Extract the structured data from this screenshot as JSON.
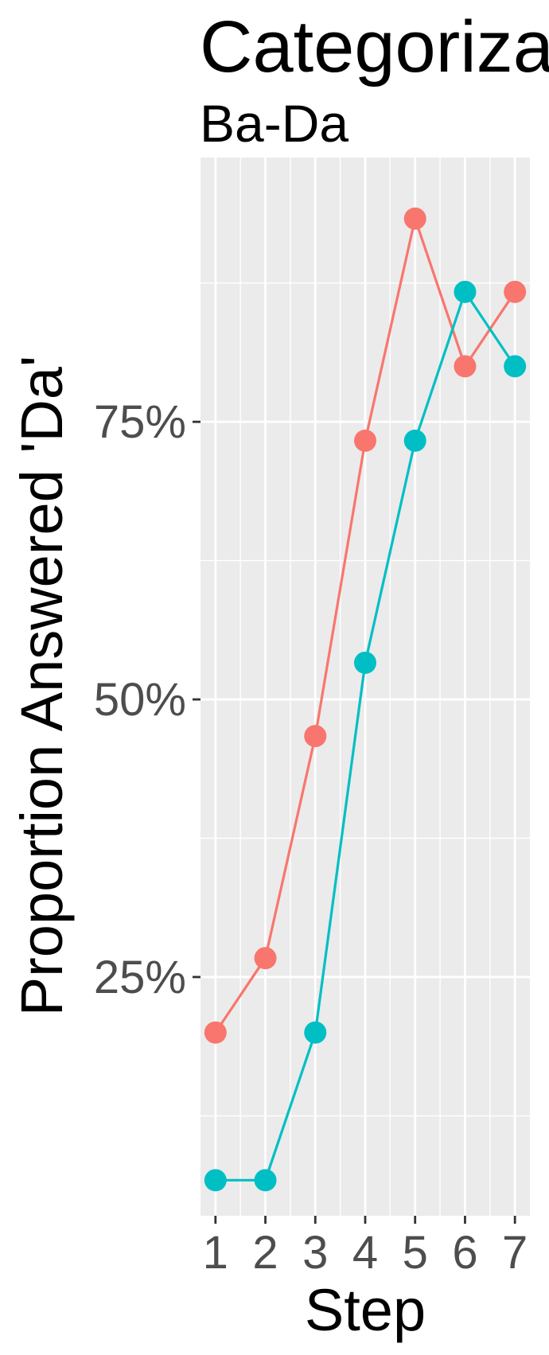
{
  "chart_data": {
    "type": "line",
    "title": "Categorizat",
    "subtitle": "Ba-Da",
    "xlabel": "Step",
    "ylabel": "Proportion Answered 'Da'",
    "x": [
      1,
      2,
      3,
      4,
      5,
      6,
      7
    ],
    "x_tick_labels": [
      "1",
      "2",
      "3",
      "4",
      "5",
      "6",
      "7"
    ],
    "xlim": [
      0.7,
      7.3
    ],
    "ylim": [
      0.035,
      0.988
    ],
    "y_ticks": [
      0.25,
      0.5,
      0.75
    ],
    "y_tick_labels": [
      "25%",
      "50%",
      "75%"
    ],
    "grid": true,
    "legend": "none",
    "series": [
      {
        "color": "#F8766D",
        "values": [
          0.2,
          0.267,
          0.467,
          0.733,
          0.933,
          0.8,
          0.867
        ]
      },
      {
        "color": "#00BFC4",
        "values": [
          0.067,
          0.067,
          0.2,
          0.533,
          0.733,
          0.867,
          0.8
        ]
      }
    ],
    "panel_background": "#EBEBEB",
    "grid_color": "#FFFFFF",
    "tick_color": "#333333"
  }
}
